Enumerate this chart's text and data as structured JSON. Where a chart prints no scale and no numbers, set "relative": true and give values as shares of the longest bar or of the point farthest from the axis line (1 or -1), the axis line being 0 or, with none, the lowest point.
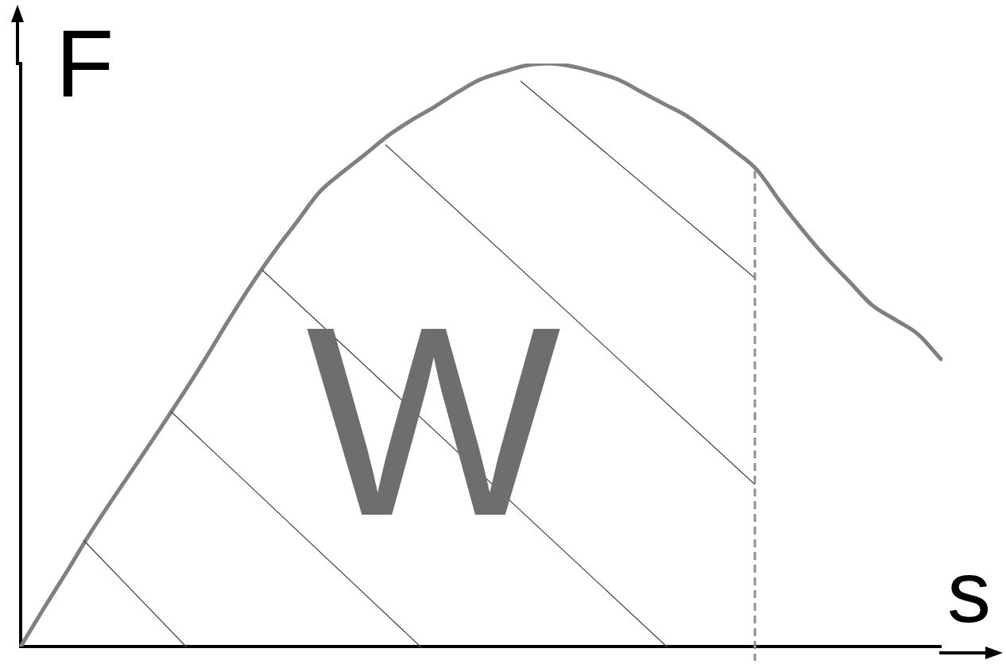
{
  "chart_data": {
    "type": "line",
    "relative": true,
    "xlabel": "s",
    "ylabel": "F",
    "annotations": [
      "W"
    ],
    "grid": false,
    "legend": false,
    "marker": "none",
    "line_style": "solid",
    "categories": [
      null,
      null,
      null,
      null,
      null,
      null,
      null,
      null,
      null,
      null,
      null,
      null,
      null,
      null,
      null,
      null,
      null,
      null,
      null,
      null,
      null,
      null,
      null,
      null,
      null,
      null,
      null,
      null,
      null,
      null,
      null,
      null,
      null,
      null,
      null,
      null,
      null,
      null,
      null,
      null,
      null
    ],
    "series": [
      {
        "color": "#808080",
        "values": [
          0,
          0.065,
          0.128,
          0.193,
          0.253,
          0.311,
          0.37,
          0.43,
          0.492,
          0.557,
          0.619,
          0.676,
          0.728,
          0.78,
          0.814,
          0.845,
          0.877,
          0.903,
          0.926,
          0.951,
          0.973,
          0.986,
          0.997,
          1,
          0.995,
          0.985,
          0.972,
          0.951,
          0.93,
          0.909,
          0.881,
          0.851,
          0.818,
          0.764,
          0.714,
          0.668,
          0.627,
          0.586,
          0.561,
          0.536,
          0.493
        ]
      }
    ]
  }
}
